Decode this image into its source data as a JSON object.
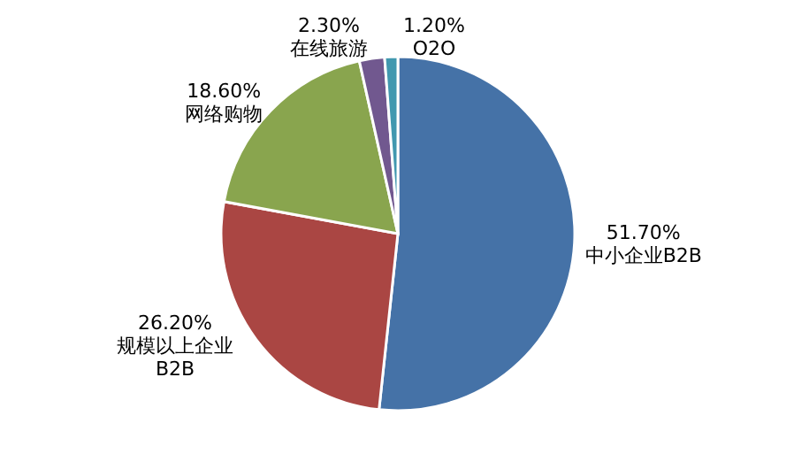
{
  "chart_data": {
    "type": "pie",
    "categories": [
      "中小企业B2B",
      "规模以上企业B2B",
      "网络购物",
      "在线旅游",
      "O2O"
    ],
    "values": [
      51.7,
      26.2,
      18.6,
      2.3,
      1.2
    ],
    "value_labels": [
      "51.70%",
      "26.20%",
      "18.60%",
      "2.30%",
      "1.20%"
    ],
    "colors": [
      "#4572a7",
      "#aa4643",
      "#89a54e",
      "#71588f",
      "#4198af"
    ]
  }
}
